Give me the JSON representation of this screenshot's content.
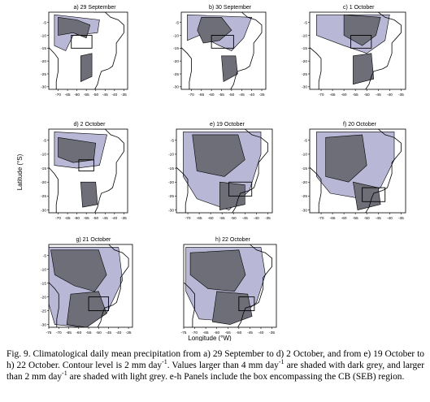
{
  "figure": {
    "panels": [
      {
        "id": "a",
        "title": "a) 29 September",
        "show_box": true,
        "show_xticks": true,
        "show_yticks": true,
        "box": {
          "lon": [
            -63,
            -52
          ],
          "lat": [
            -15,
            -10
          ]
        }
      },
      {
        "id": "b",
        "title": "b) 30 September",
        "show_box": true,
        "show_xticks": true,
        "show_yticks": true,
        "box": {
          "lon": [
            -60,
            -49
          ],
          "lat": [
            -15,
            -10
          ]
        }
      },
      {
        "id": "c",
        "title": "c) 1 October",
        "show_box": true,
        "show_xticks": true,
        "show_yticks": true,
        "box": {
          "lon": [
            -57,
            -48
          ],
          "lat": [
            -15,
            -10
          ]
        }
      },
      {
        "id": "d",
        "title": "d) 2 October",
        "show_box": true,
        "show_xticks": true,
        "show_yticks": true,
        "box": {
          "lon": [
            -59,
            -51
          ],
          "lat": [
            -16,
            -12
          ]
        }
      },
      {
        "id": "e",
        "title": "e) 19 October",
        "show_box": true,
        "show_xticks": true,
        "show_yticks": true,
        "box": {
          "lon": [
            -52,
            -42
          ],
          "lat": [
            -25,
            -20
          ]
        }
      },
      {
        "id": "f",
        "title": "f) 20 October",
        "show_box": true,
        "show_xticks": true,
        "show_yticks": true,
        "box": {
          "lon": [
            -52,
            -42
          ],
          "lat": [
            -27,
            -22
          ]
        }
      },
      {
        "id": "g",
        "title": "g) 21 October",
        "show_box": true,
        "show_xticks": true,
        "show_yticks": true,
        "box": {
          "lon": [
            -55,
            -45
          ],
          "lat": [
            -25,
            -20
          ]
        }
      },
      {
        "id": "h",
        "title": "h) 22 October",
        "show_box": true,
        "show_xticks": true,
        "show_yticks": false,
        "box": {
          "lon": [
            -50,
            -43
          ],
          "lat": [
            -25,
            -20
          ]
        }
      }
    ],
    "xticks": [
      "-70",
      "-65",
      "-60",
      "-55",
      "-50",
      "-45",
      "-40",
      "-35"
    ],
    "xticks_bottom": [
      "-75",
      "-70",
      "-65",
      "-60",
      "-55",
      "-50",
      "-45",
      "-40",
      "-35"
    ],
    "yticks": [
      "-5",
      "-10",
      "-15",
      "-20",
      "-25",
      "-30"
    ],
    "ylabel": "Latitude (°S)",
    "xlabel": "Longitude (°W)",
    "colors": {
      "dark": "#6e6e78",
      "light": "#b8b8d6",
      "land_line": "#000000",
      "box": "#000000"
    }
  },
  "caption": {
    "s1": "Fig. 9. Climatological daily mean precipitation from a) 29 September to d) 2 October, and from e) 19 October to h) 22 October. Contour level is 2 mm day",
    "s2": ". Values larger than 4 mm day",
    "s3": " are shaded with dark grey, and larger than 2 mm day",
    "s4": " are shaded with light grey. e-h Panels include the box encompassing the CB (SEB) region.",
    "sup": "-1"
  }
}
